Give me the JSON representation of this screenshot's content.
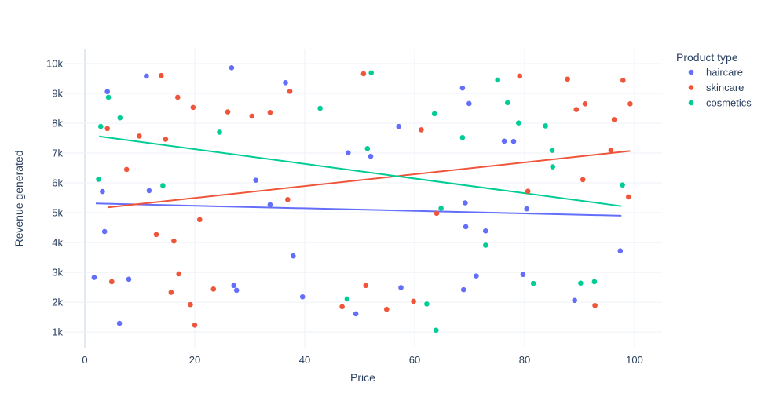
{
  "chart_data": {
    "type": "scatter",
    "title": "",
    "xlabel": "Price",
    "ylabel": "Revenue generated",
    "xlim": [
      -4,
      105
    ],
    "ylim": [
      450,
      10500
    ],
    "x_ticks": [
      0,
      20,
      40,
      60,
      80,
      100
    ],
    "x_tick_labels": [
      "0",
      "20",
      "40",
      "60",
      "80",
      "100"
    ],
    "y_ticks": [
      1000,
      2000,
      3000,
      4000,
      5000,
      6000,
      7000,
      8000,
      9000,
      10000
    ],
    "y_tick_labels": [
      "1k",
      "2k",
      "3k",
      "4k",
      "5k",
      "6k",
      "7k",
      "8k",
      "9k",
      "10k"
    ],
    "grid": true,
    "legend": {
      "title": "Product type",
      "placement": "right"
    },
    "series": [
      {
        "name": "haircare",
        "color": "#636efa",
        "trendline": {
          "x": [
            2.0,
            97.6
          ],
          "y": [
            5310,
            4900
          ]
        },
        "points": [
          [
            1.7,
            2830
          ],
          [
            3.2,
            5710
          ],
          [
            3.6,
            4370
          ],
          [
            4.1,
            9060
          ],
          [
            6.3,
            1290
          ],
          [
            8.0,
            2770
          ],
          [
            11.2,
            9580
          ],
          [
            11.7,
            5740
          ],
          [
            26.7,
            9860
          ],
          [
            27.1,
            2560
          ],
          [
            27.6,
            2400
          ],
          [
            31.1,
            6090
          ],
          [
            33.7,
            5270
          ],
          [
            36.5,
            9360
          ],
          [
            37.9,
            3550
          ],
          [
            39.6,
            2180
          ],
          [
            47.9,
            7010
          ],
          [
            49.3,
            1610
          ],
          [
            52.0,
            6890
          ],
          [
            57.1,
            7890
          ],
          [
            57.5,
            2490
          ],
          [
            68.7,
            9180
          ],
          [
            68.9,
            2420
          ],
          [
            69.2,
            5330
          ],
          [
            69.3,
            4530
          ],
          [
            69.9,
            8660
          ],
          [
            71.2,
            2880
          ],
          [
            72.9,
            4390
          ],
          [
            76.3,
            7400
          ],
          [
            78.0,
            7390
          ],
          [
            79.7,
            2930
          ],
          [
            80.4,
            5130
          ],
          [
            89.1,
            2060
          ],
          [
            97.4,
            3720
          ]
        ]
      },
      {
        "name": "skincare",
        "color": "#ef553b",
        "trendline": {
          "x": [
            4.2,
            99.2
          ],
          "y": [
            5180,
            7070
          ]
        },
        "points": [
          [
            4.1,
            7820
          ],
          [
            4.9,
            2690
          ],
          [
            7.6,
            6450
          ],
          [
            9.9,
            7570
          ],
          [
            13.0,
            4270
          ],
          [
            13.9,
            9600
          ],
          [
            14.7,
            7460
          ],
          [
            15.7,
            2330
          ],
          [
            16.2,
            4050
          ],
          [
            16.9,
            8870
          ],
          [
            17.1,
            2950
          ],
          [
            19.2,
            1920
          ],
          [
            19.7,
            8530
          ],
          [
            20.0,
            1230
          ],
          [
            20.9,
            4770
          ],
          [
            23.4,
            2440
          ],
          [
            26.0,
            8380
          ],
          [
            30.4,
            8240
          ],
          [
            33.7,
            8360
          ],
          [
            36.9,
            5440
          ],
          [
            37.3,
            9070
          ],
          [
            46.8,
            1850
          ],
          [
            50.7,
            9660
          ],
          [
            51.1,
            2560
          ],
          [
            54.9,
            1760
          ],
          [
            59.8,
            2030
          ],
          [
            61.2,
            7780
          ],
          [
            64.0,
            4980
          ],
          [
            79.1,
            9580
          ],
          [
            80.6,
            5720
          ],
          [
            87.8,
            9480
          ],
          [
            89.4,
            8460
          ],
          [
            90.6,
            6110
          ],
          [
            91.0,
            8650
          ],
          [
            92.8,
            1890
          ],
          [
            95.7,
            7090
          ],
          [
            96.3,
            8120
          ],
          [
            97.9,
            9440
          ],
          [
            98.9,
            5530
          ],
          [
            99.2,
            8650
          ]
        ]
      },
      {
        "name": "cosmetics",
        "color": "#00cc96",
        "trendline": {
          "x": [
            2.6,
            97.6
          ],
          "y": [
            7560,
            5220
          ]
        },
        "points": [
          [
            2.5,
            6120
          ],
          [
            2.9,
            7890
          ],
          [
            4.3,
            8870
          ],
          [
            6.4,
            8180
          ],
          [
            14.2,
            5910
          ],
          [
            24.5,
            7700
          ],
          [
            42.8,
            8500
          ],
          [
            47.7,
            2110
          ],
          [
            51.4,
            7150
          ],
          [
            52.1,
            9690
          ],
          [
            62.2,
            1940
          ],
          [
            63.6,
            8320
          ],
          [
            63.9,
            1060
          ],
          [
            64.8,
            5150
          ],
          [
            68.7,
            7520
          ],
          [
            72.9,
            3910
          ],
          [
            75.1,
            9450
          ],
          [
            76.9,
            8690
          ],
          [
            78.9,
            8010
          ],
          [
            81.6,
            2630
          ],
          [
            83.8,
            7910
          ],
          [
            85.0,
            7090
          ],
          [
            85.1,
            6540
          ],
          [
            90.2,
            2640
          ],
          [
            92.7,
            2690
          ],
          [
            97.8,
            5930
          ]
        ]
      }
    ]
  }
}
